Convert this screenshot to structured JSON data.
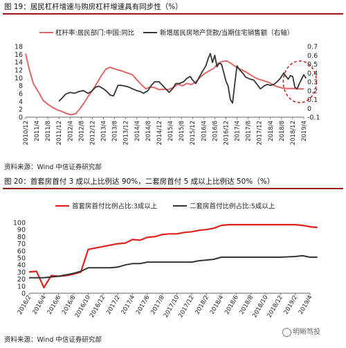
{
  "chart_data": [
    {
      "type": "line",
      "title": "图 19：居民杠杆增速与购房杠杆增速具有同步性（%）",
      "source": "资料来源：Wind 中信证券研究部",
      "x_ticks": [
        "2010/12",
        "2011/4",
        "2011/8",
        "2011/12",
        "2012/4",
        "2012/8",
        "2012/12",
        "2013/4",
        "2013/8",
        "2013/12",
        "2014/4",
        "2014/8",
        "2014/12",
        "2015/4",
        "2015/8",
        "2015/12",
        "2016/4",
        "2016/8",
        "2016/12",
        "2017/4",
        "2017/8",
        "2017/12",
        "2018/4",
        "2018/8",
        "2018/12",
        "2019/4"
      ],
      "ylim_left": [
        0,
        18
      ],
      "yticks_left": [
        0,
        2,
        4,
        6,
        8,
        10,
        12,
        14,
        16,
        18
      ],
      "ylim_right": [
        -0.1,
        0.7
      ],
      "yticks_right": [
        -0.1,
        0,
        0.1,
        0.2,
        0.3,
        0.4,
        0.5,
        0.6,
        0.7
      ],
      "legend_position": "top",
      "annotation": "red-dashed-ellipse-2018/12-2019/4",
      "series": [
        {
          "name": "杠杆率:居民部门:中国:同比",
          "axis": "left",
          "color": "#e06666",
          "points": [
            [
              0,
              16.2
            ],
            [
              0.3,
              12.5
            ],
            [
              0.7,
              8.5
            ],
            [
              1.2,
              6.2
            ],
            [
              1.6,
              4.2
            ],
            [
              2.0,
              3.3
            ],
            [
              2.4,
              2.5
            ],
            [
              2.9,
              1.8
            ],
            [
              3.3,
              1.4
            ],
            [
              3.7,
              0.9
            ],
            [
              4.1,
              0.6
            ],
            [
              4.5,
              0.9
            ],
            [
              4.9,
              2.2
            ],
            [
              5.3,
              3.8
            ],
            [
              5.6,
              5.2
            ],
            [
              6.0,
              6.8
            ],
            [
              6.4,
              8.6
            ],
            [
              6.8,
              10.5
            ],
            [
              7.2,
              12.2
            ],
            [
              7.6,
              12.7
            ],
            [
              8.1,
              12.2
            ],
            [
              8.6,
              11.8
            ],
            [
              9.1,
              11.3
            ],
            [
              9.6,
              10.8
            ],
            [
              10.0,
              9.5
            ],
            [
              10.4,
              8.3
            ],
            [
              10.8,
              7.2
            ],
            [
              11.2,
              7.7
            ],
            [
              11.6,
              7.5
            ],
            [
              12.0,
              7.0
            ],
            [
              12.4,
              7.1
            ],
            [
              12.8,
              7.0
            ],
            [
              13.3,
              7.6
            ],
            [
              13.7,
              8.4
            ],
            [
              14.1,
              8.0
            ],
            [
              14.5,
              8.6
            ],
            [
              14.9,
              8.3
            ],
            [
              15.3,
              9.0
            ],
            [
              15.7,
              10.2
            ],
            [
              16.1,
              11.1
            ],
            [
              16.5,
              11.8
            ],
            [
              16.9,
              12.4
            ],
            [
              17.3,
              13.7
            ],
            [
              17.7,
              14.2
            ],
            [
              18.1,
              14.3
            ],
            [
              18.5,
              13.6
            ],
            [
              18.9,
              12.8
            ],
            [
              19.3,
              12.2
            ],
            [
              19.8,
              11.5
            ],
            [
              20.2,
              10.8
            ],
            [
              20.6,
              10.1
            ],
            [
              21.0,
              9.6
            ],
            [
              21.5,
              9.2
            ],
            [
              21.9,
              8.8
            ],
            [
              22.3,
              8.1
            ],
            [
              22.7,
              7.7
            ],
            [
              23.1,
              7.4
            ],
            [
              23.5,
              7.3
            ],
            [
              24.0,
              7.3
            ],
            [
              24.4,
              7.2
            ],
            [
              24.8,
              7.2
            ],
            [
              25.0,
              7.2
            ]
          ]
        },
        {
          "name": "新增居民房地产贷款/当期住宅销售额（右轴）",
          "axis": "right",
          "color": "#333333",
          "points": [
            [
              3.0,
              0.08
            ],
            [
              3.3,
              0.12
            ],
            [
              3.6,
              0.16
            ],
            [
              4.0,
              0.18
            ],
            [
              4.4,
              0.17
            ],
            [
              4.8,
              0.19
            ],
            [
              5.2,
              0.2
            ],
            [
              5.6,
              0.17
            ],
            [
              5.9,
              0.19
            ],
            [
              6.3,
              0.24
            ],
            [
              6.6,
              0.25
            ],
            [
              7.0,
              0.22
            ],
            [
              7.3,
              0.19
            ],
            [
              7.6,
              0.15
            ],
            [
              7.9,
              0.14
            ],
            [
              8.3,
              0.26
            ],
            [
              8.6,
              0.26
            ],
            [
              9.0,
              0.25
            ],
            [
              9.3,
              0.24
            ],
            [
              9.6,
              0.22
            ],
            [
              10.0,
              0.2
            ],
            [
              10.3,
              0.19
            ],
            [
              10.6,
              0.17
            ],
            [
              11.0,
              0.2
            ],
            [
              11.3,
              0.26
            ],
            [
              11.6,
              0.3
            ],
            [
              12.0,
              0.3
            ],
            [
              12.3,
              0.26
            ],
            [
              12.6,
              0.22
            ],
            [
              12.9,
              0.18
            ],
            [
              13.2,
              0.22
            ],
            [
              13.5,
              0.28
            ],
            [
              13.8,
              0.28
            ],
            [
              14.2,
              0.3
            ],
            [
              14.5,
              0.34
            ],
            [
              14.8,
              0.36
            ],
            [
              15.0,
              0.32
            ],
            [
              15.3,
              0.28
            ],
            [
              15.6,
              0.35
            ],
            [
              15.9,
              0.42
            ],
            [
              16.2,
              0.48
            ],
            [
              16.4,
              0.56
            ],
            [
              16.6,
              0.62
            ],
            [
              16.8,
              0.52
            ],
            [
              17.0,
              0.6
            ],
            [
              17.2,
              0.47
            ],
            [
              17.4,
              0.51
            ],
            [
              17.6,
              0.5
            ],
            [
              17.8,
              0.41
            ],
            [
              18.0,
              0.31
            ],
            [
              18.2,
              0.25
            ],
            [
              18.4,
              0.1
            ],
            [
              18.6,
              0.06
            ],
            [
              18.8,
              0.28
            ],
            [
              19.0,
              0.48
            ],
            [
              19.2,
              0.44
            ],
            [
              19.5,
              0.4
            ],
            [
              19.8,
              0.35
            ],
            [
              20.2,
              0.33
            ],
            [
              20.5,
              0.32
            ],
            [
              20.8,
              0.27
            ],
            [
              21.1,
              0.22
            ],
            [
              21.4,
              0.25
            ],
            [
              21.7,
              0.27
            ],
            [
              22.0,
              0.26
            ],
            [
              22.3,
              0.27
            ],
            [
              22.6,
              0.3
            ],
            [
              22.9,
              0.34
            ],
            [
              23.2,
              0.4
            ],
            [
              23.4,
              0.36
            ],
            [
              23.6,
              0.33
            ],
            [
              23.8,
              0.37
            ],
            [
              24.0,
              0.36
            ],
            [
              24.2,
              0.24
            ],
            [
              24.4,
              0.22
            ],
            [
              24.6,
              0.28
            ],
            [
              24.8,
              0.33
            ],
            [
              25.0,
              0.38
            ],
            [
              25.2,
              0.34
            ]
          ]
        }
      ]
    },
    {
      "type": "line",
      "title": "图 20：首套房首付 3 成以上比例达 90%，二套房首付 5 成以上比例达 50%（%）",
      "source": "资料来源：Wind 中信证券研究部",
      "x_ticks": [
        "2016/2",
        "2016/4",
        "2016/6",
        "2016/8",
        "2016/10",
        "2016/12",
        "2017/2",
        "2017/4",
        "2017/6",
        "2017/8",
        "2017/10",
        "2017/12",
        "2018/2",
        "2018/4",
        "2018/6",
        "2018/8",
        "2018/10",
        "2018/12",
        "2019/2",
        "2019/4"
      ],
      "ylim": [
        0,
        100
      ],
      "yticks": [
        0,
        10,
        20,
        30,
        40,
        50,
        60,
        70,
        80,
        90,
        100
      ],
      "legend_position": "top",
      "series": [
        {
          "name": "首套房首付比例占比:3成以上",
          "color": "#e0211b",
          "points": [
            [
              0,
              30
            ],
            [
              0.5,
              31
            ],
            [
              1,
              8
            ],
            [
              1.5,
              25
            ],
            [
              2,
              24
            ],
            [
              2.5,
              25
            ],
            [
              3,
              27
            ],
            [
              3.5,
              30
            ],
            [
              4,
              62
            ],
            [
              4.5,
              64
            ],
            [
              5,
              66
            ],
            [
              5.5,
              68
            ],
            [
              6,
              70
            ],
            [
              6.5,
              71
            ],
            [
              7,
              76
            ],
            [
              7.5,
              75
            ],
            [
              8,
              79
            ],
            [
              8.5,
              80
            ],
            [
              9,
              83
            ],
            [
              9.5,
              84
            ],
            [
              10,
              84
            ],
            [
              10.5,
              86
            ],
            [
              11,
              87
            ],
            [
              11.5,
              89
            ],
            [
              12,
              90
            ],
            [
              12.5,
              92
            ],
            [
              13,
              96
            ],
            [
              13.5,
              97
            ],
            [
              14,
              97
            ],
            [
              15,
              97
            ],
            [
              16,
              97
            ],
            [
              17,
              97
            ],
            [
              18,
              97
            ],
            [
              18.5,
              96
            ],
            [
              19,
              94
            ],
            [
              19.5,
              93
            ]
          ]
        },
        {
          "name": "二套房首付比例占比:5成以上",
          "color": "#333333",
          "points": [
            [
              0,
              22
            ],
            [
              0.5,
              22
            ],
            [
              1,
              22
            ],
            [
              1.5,
              23
            ],
            [
              2,
              24
            ],
            [
              2.5,
              26
            ],
            [
              3,
              28
            ],
            [
              3.5,
              31
            ],
            [
              4,
              36
            ],
            [
              4.5,
              36
            ],
            [
              5,
              36
            ],
            [
              5.5,
              36
            ],
            [
              6,
              37
            ],
            [
              6.5,
              40
            ],
            [
              7,
              42
            ],
            [
              7.5,
              42
            ],
            [
              8,
              44
            ],
            [
              8.5,
              44
            ],
            [
              9,
              44
            ],
            [
              10,
              44
            ],
            [
              11,
              44
            ],
            [
              11.5,
              46
            ],
            [
              12,
              47
            ],
            [
              12.5,
              48
            ],
            [
              13,
              51
            ],
            [
              14,
              51
            ],
            [
              15,
              51
            ],
            [
              16,
              51
            ],
            [
              17,
              51
            ],
            [
              18,
              52
            ],
            [
              18.5,
              53
            ],
            [
              19,
              51
            ],
            [
              19.5,
              51
            ]
          ]
        }
      ]
    }
  ],
  "watermark": "明晰笃投"
}
